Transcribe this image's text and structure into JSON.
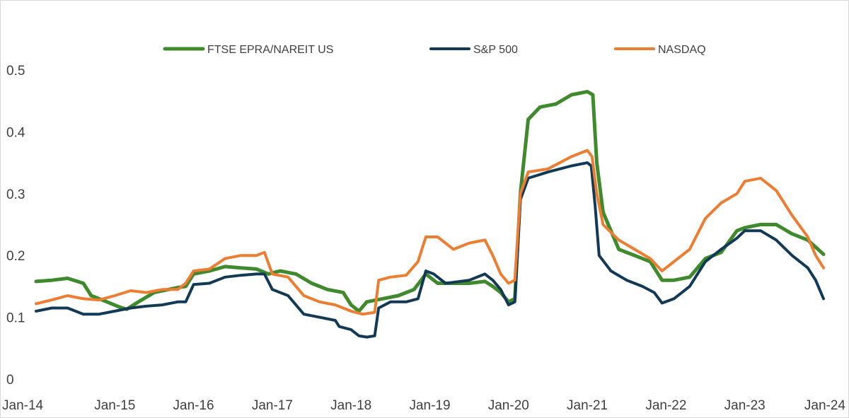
{
  "chart_data": {
    "type": "line",
    "title": "",
    "xlabel": "",
    "ylabel": "",
    "x_ticks": [
      "Jan-14",
      "Jan-15",
      "Jan-16",
      "Jan-17",
      "Jan-18",
      "Jan-19",
      "Jan-20",
      "Jan-21",
      "Jan-22",
      "Jan-23",
      "Jan-24"
    ],
    "y_ticks": [
      "0",
      "0.1",
      "0.2",
      "0.3",
      "0.4",
      "0.5"
    ],
    "xlim": [
      2014.0,
      2024.0
    ],
    "ylim": [
      0,
      0.5
    ],
    "grid": false,
    "legend": "top",
    "series": [
      {
        "name": "FTSE EPRA/NAREIT US",
        "color": "#3f8a2c",
        "points": [
          [
            2014.0,
            0.158
          ],
          [
            2014.2,
            0.16
          ],
          [
            2014.4,
            0.163
          ],
          [
            2014.6,
            0.155
          ],
          [
            2014.7,
            0.135
          ],
          [
            2014.9,
            0.125
          ],
          [
            2015.05,
            0.117
          ],
          [
            2015.15,
            0.113
          ],
          [
            2015.3,
            0.125
          ],
          [
            2015.5,
            0.14
          ],
          [
            2015.8,
            0.148
          ],
          [
            2015.9,
            0.15
          ],
          [
            2016.0,
            0.17
          ],
          [
            2016.2,
            0.175
          ],
          [
            2016.4,
            0.182
          ],
          [
            2016.6,
            0.18
          ],
          [
            2016.8,
            0.178
          ],
          [
            2016.95,
            0.17
          ],
          [
            2017.1,
            0.175
          ],
          [
            2017.3,
            0.17
          ],
          [
            2017.5,
            0.155
          ],
          [
            2017.7,
            0.145
          ],
          [
            2017.9,
            0.14
          ],
          [
            2018.0,
            0.12
          ],
          [
            2018.1,
            0.11
          ],
          [
            2018.2,
            0.125
          ],
          [
            2018.4,
            0.13
          ],
          [
            2018.6,
            0.135
          ],
          [
            2018.8,
            0.145
          ],
          [
            2018.95,
            0.17
          ],
          [
            2019.1,
            0.155
          ],
          [
            2019.3,
            0.155
          ],
          [
            2019.5,
            0.155
          ],
          [
            2019.7,
            0.158
          ],
          [
            2019.8,
            0.15
          ],
          [
            2019.9,
            0.14
          ],
          [
            2020.0,
            0.125
          ],
          [
            2020.08,
            0.13
          ],
          [
            2020.15,
            0.3
          ],
          [
            2020.25,
            0.42
          ],
          [
            2020.4,
            0.44
          ],
          [
            2020.6,
            0.445
          ],
          [
            2020.8,
            0.46
          ],
          [
            2021.0,
            0.465
          ],
          [
            2021.07,
            0.46
          ],
          [
            2021.12,
            0.35
          ],
          [
            2021.2,
            0.27
          ],
          [
            2021.4,
            0.21
          ],
          [
            2021.6,
            0.2
          ],
          [
            2021.8,
            0.19
          ],
          [
            2021.95,
            0.16
          ],
          [
            2022.1,
            0.16
          ],
          [
            2022.3,
            0.165
          ],
          [
            2022.5,
            0.195
          ],
          [
            2022.7,
            0.205
          ],
          [
            2022.9,
            0.24
          ],
          [
            2023.0,
            0.245
          ],
          [
            2023.2,
            0.25
          ],
          [
            2023.4,
            0.25
          ],
          [
            2023.6,
            0.235
          ],
          [
            2023.8,
            0.225
          ],
          [
            2024.0,
            0.202
          ]
        ]
      },
      {
        "name": "S&P 500",
        "color": "#123a57",
        "points": [
          [
            2014.0,
            0.11
          ],
          [
            2014.2,
            0.115
          ],
          [
            2014.4,
            0.115
          ],
          [
            2014.6,
            0.105
          ],
          [
            2014.8,
            0.105
          ],
          [
            2015.0,
            0.11
          ],
          [
            2015.2,
            0.115
          ],
          [
            2015.4,
            0.118
          ],
          [
            2015.6,
            0.12
          ],
          [
            2015.8,
            0.125
          ],
          [
            2015.9,
            0.125
          ],
          [
            2016.0,
            0.153
          ],
          [
            2016.2,
            0.155
          ],
          [
            2016.4,
            0.165
          ],
          [
            2016.6,
            0.168
          ],
          [
            2016.8,
            0.17
          ],
          [
            2016.9,
            0.17
          ],
          [
            2017.0,
            0.145
          ],
          [
            2017.2,
            0.135
          ],
          [
            2017.4,
            0.105
          ],
          [
            2017.6,
            0.1
          ],
          [
            2017.8,
            0.095
          ],
          [
            2017.85,
            0.085
          ],
          [
            2018.0,
            0.08
          ],
          [
            2018.1,
            0.07
          ],
          [
            2018.2,
            0.068
          ],
          [
            2018.3,
            0.07
          ],
          [
            2018.35,
            0.115
          ],
          [
            2018.5,
            0.125
          ],
          [
            2018.7,
            0.125
          ],
          [
            2018.85,
            0.13
          ],
          [
            2018.95,
            0.175
          ],
          [
            2019.05,
            0.17
          ],
          [
            2019.2,
            0.155
          ],
          [
            2019.5,
            0.16
          ],
          [
            2019.7,
            0.17
          ],
          [
            2019.8,
            0.16
          ],
          [
            2019.9,
            0.145
          ],
          [
            2020.0,
            0.12
          ],
          [
            2020.08,
            0.125
          ],
          [
            2020.15,
            0.29
          ],
          [
            2020.25,
            0.325
          ],
          [
            2020.5,
            0.335
          ],
          [
            2020.8,
            0.345
          ],
          [
            2021.0,
            0.35
          ],
          [
            2021.05,
            0.345
          ],
          [
            2021.1,
            0.28
          ],
          [
            2021.15,
            0.2
          ],
          [
            2021.3,
            0.175
          ],
          [
            2021.5,
            0.16
          ],
          [
            2021.7,
            0.15
          ],
          [
            2021.85,
            0.14
          ],
          [
            2021.95,
            0.123
          ],
          [
            2022.1,
            0.13
          ],
          [
            2022.3,
            0.15
          ],
          [
            2022.5,
            0.19
          ],
          [
            2022.7,
            0.21
          ],
          [
            2022.9,
            0.228
          ],
          [
            2023.0,
            0.24
          ],
          [
            2023.2,
            0.24
          ],
          [
            2023.4,
            0.225
          ],
          [
            2023.6,
            0.2
          ],
          [
            2023.8,
            0.18
          ],
          [
            2023.9,
            0.16
          ],
          [
            2024.0,
            0.13
          ]
        ]
      },
      {
        "name": "NASDAQ",
        "color": "#ed7d31",
        "points": [
          [
            2014.0,
            0.122
          ],
          [
            2014.2,
            0.128
          ],
          [
            2014.4,
            0.135
          ],
          [
            2014.6,
            0.13
          ],
          [
            2014.8,
            0.128
          ],
          [
            2015.0,
            0.135
          ],
          [
            2015.2,
            0.143
          ],
          [
            2015.4,
            0.14
          ],
          [
            2015.6,
            0.145
          ],
          [
            2015.8,
            0.145
          ],
          [
            2015.9,
            0.155
          ],
          [
            2016.0,
            0.175
          ],
          [
            2016.2,
            0.178
          ],
          [
            2016.4,
            0.195
          ],
          [
            2016.6,
            0.2
          ],
          [
            2016.8,
            0.2
          ],
          [
            2016.9,
            0.205
          ],
          [
            2017.0,
            0.17
          ],
          [
            2017.2,
            0.165
          ],
          [
            2017.4,
            0.135
          ],
          [
            2017.6,
            0.125
          ],
          [
            2017.8,
            0.12
          ],
          [
            2018.0,
            0.11
          ],
          [
            2018.15,
            0.105
          ],
          [
            2018.3,
            0.108
          ],
          [
            2018.35,
            0.16
          ],
          [
            2018.5,
            0.165
          ],
          [
            2018.7,
            0.168
          ],
          [
            2018.85,
            0.19
          ],
          [
            2018.95,
            0.23
          ],
          [
            2019.1,
            0.23
          ],
          [
            2019.3,
            0.21
          ],
          [
            2019.5,
            0.22
          ],
          [
            2019.7,
            0.225
          ],
          [
            2019.8,
            0.2
          ],
          [
            2019.9,
            0.17
          ],
          [
            2020.0,
            0.155
          ],
          [
            2020.08,
            0.16
          ],
          [
            2020.15,
            0.3
          ],
          [
            2020.25,
            0.335
          ],
          [
            2020.5,
            0.34
          ],
          [
            2020.8,
            0.36
          ],
          [
            2021.0,
            0.37
          ],
          [
            2021.06,
            0.36
          ],
          [
            2021.12,
            0.3
          ],
          [
            2021.2,
            0.25
          ],
          [
            2021.4,
            0.225
          ],
          [
            2021.6,
            0.21
          ],
          [
            2021.8,
            0.195
          ],
          [
            2021.95,
            0.175
          ],
          [
            2022.1,
            0.19
          ],
          [
            2022.3,
            0.21
          ],
          [
            2022.5,
            0.26
          ],
          [
            2022.7,
            0.285
          ],
          [
            2022.9,
            0.3
          ],
          [
            2023.0,
            0.32
          ],
          [
            2023.2,
            0.325
          ],
          [
            2023.4,
            0.305
          ],
          [
            2023.6,
            0.265
          ],
          [
            2023.8,
            0.23
          ],
          [
            2023.9,
            0.2
          ],
          [
            2024.0,
            0.18
          ]
        ]
      }
    ]
  }
}
